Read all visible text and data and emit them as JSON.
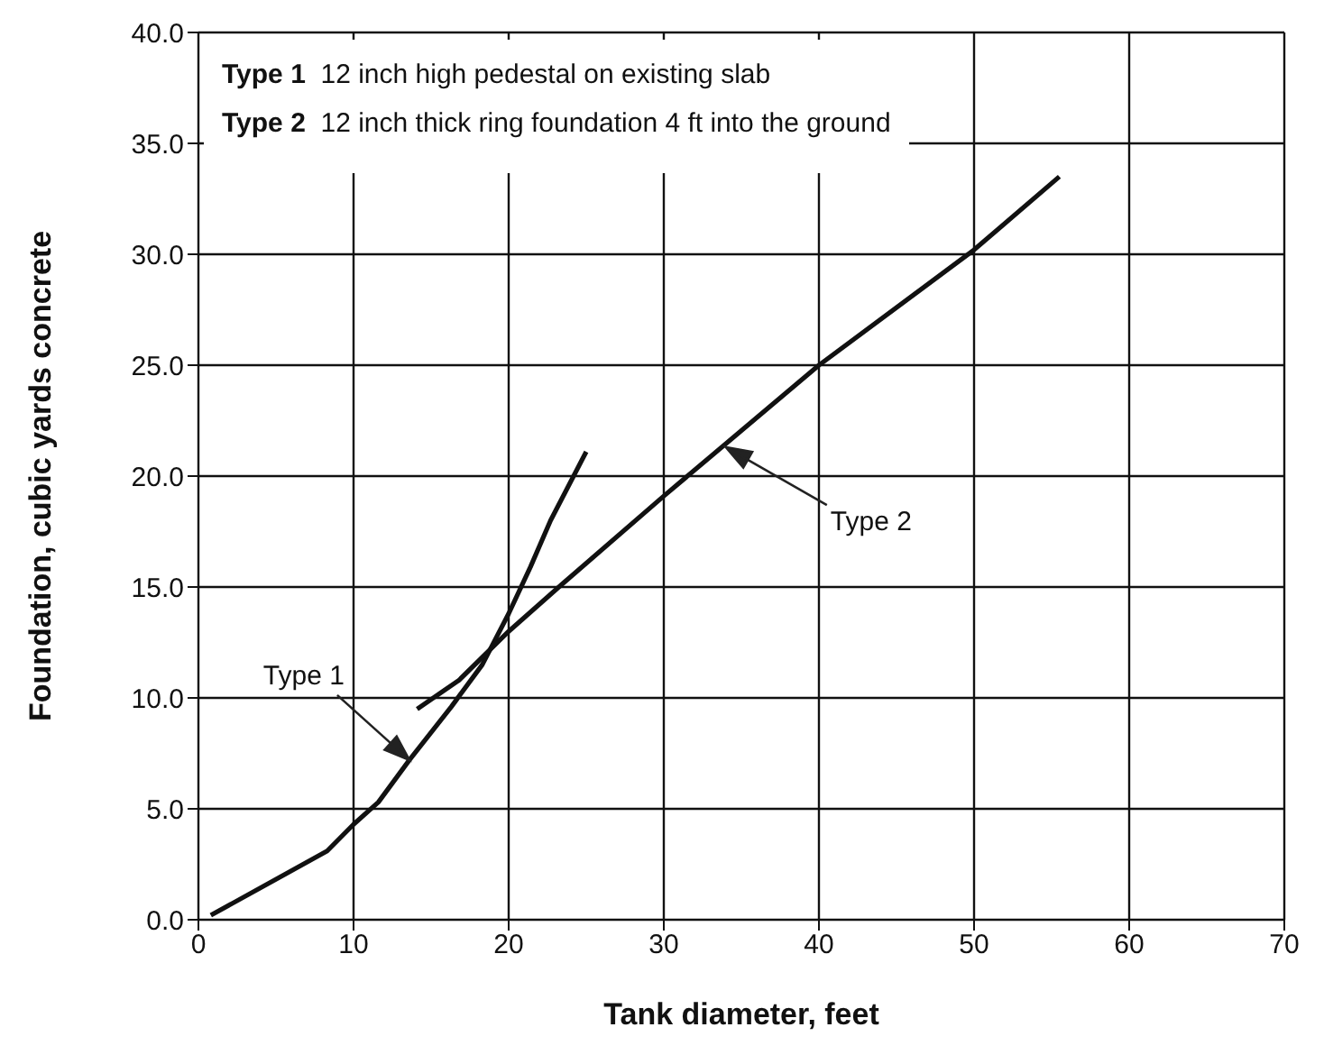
{
  "chart_data": {
    "type": "line",
    "xlabel": "Tank diameter, feet",
    "ylabel": "Foundation, cubic yards concrete",
    "xlim": [
      0,
      70
    ],
    "xticks": [
      0,
      10,
      20,
      30,
      40,
      50,
      60,
      70
    ],
    "ylim": [
      0,
      40
    ],
    "yticks": [
      {
        "value": 0,
        "label": "0.0"
      },
      {
        "value": 5,
        "label": "5.0"
      },
      {
        "value": 10,
        "label": "10.0"
      },
      {
        "value": 15,
        "label": "15.0"
      },
      {
        "value": 20,
        "label": "20.0"
      },
      {
        "value": 25,
        "label": "25.0"
      },
      {
        "value": 30,
        "label": "30.0"
      },
      {
        "value": 35,
        "label": "35.0"
      },
      {
        "value": 40,
        "label": "40.0"
      }
    ],
    "grid": true,
    "marker": "none",
    "line_style": "solid",
    "legend": false,
    "series": [
      {
        "color": "#111111",
        "x": [
          0.8,
          5.2,
          8.3,
          10,
          11.6,
          13.6,
          16.3,
          18.3,
          20,
          21.4,
          22.7,
          25
        ],
        "values": [
          0.2,
          1.9,
          3.1,
          4.3,
          5.3,
          7.2,
          9.6,
          11.5,
          13.8,
          15.9,
          18,
          21.1
        ]
      },
      {
        "color": "#111111",
        "x": [
          14.1,
          16.8,
          20,
          23.4,
          30,
          40,
          50,
          55.5
        ],
        "values": [
          9.5,
          10.8,
          13,
          15.1,
          19.1,
          25,
          30.2,
          33.5
        ]
      }
    ],
    "annotations": [
      "Type 1  12 inch high pedestal on existing slab",
      "Type 2  12 inch thick ring foundation 4 ft into the ground",
      {
        "text": "Type 1",
        "x": 13.6,
        "y": 7.2
      },
      {
        "text": "Type 2",
        "x": 34,
        "y": 21.3
      }
    ]
  }
}
